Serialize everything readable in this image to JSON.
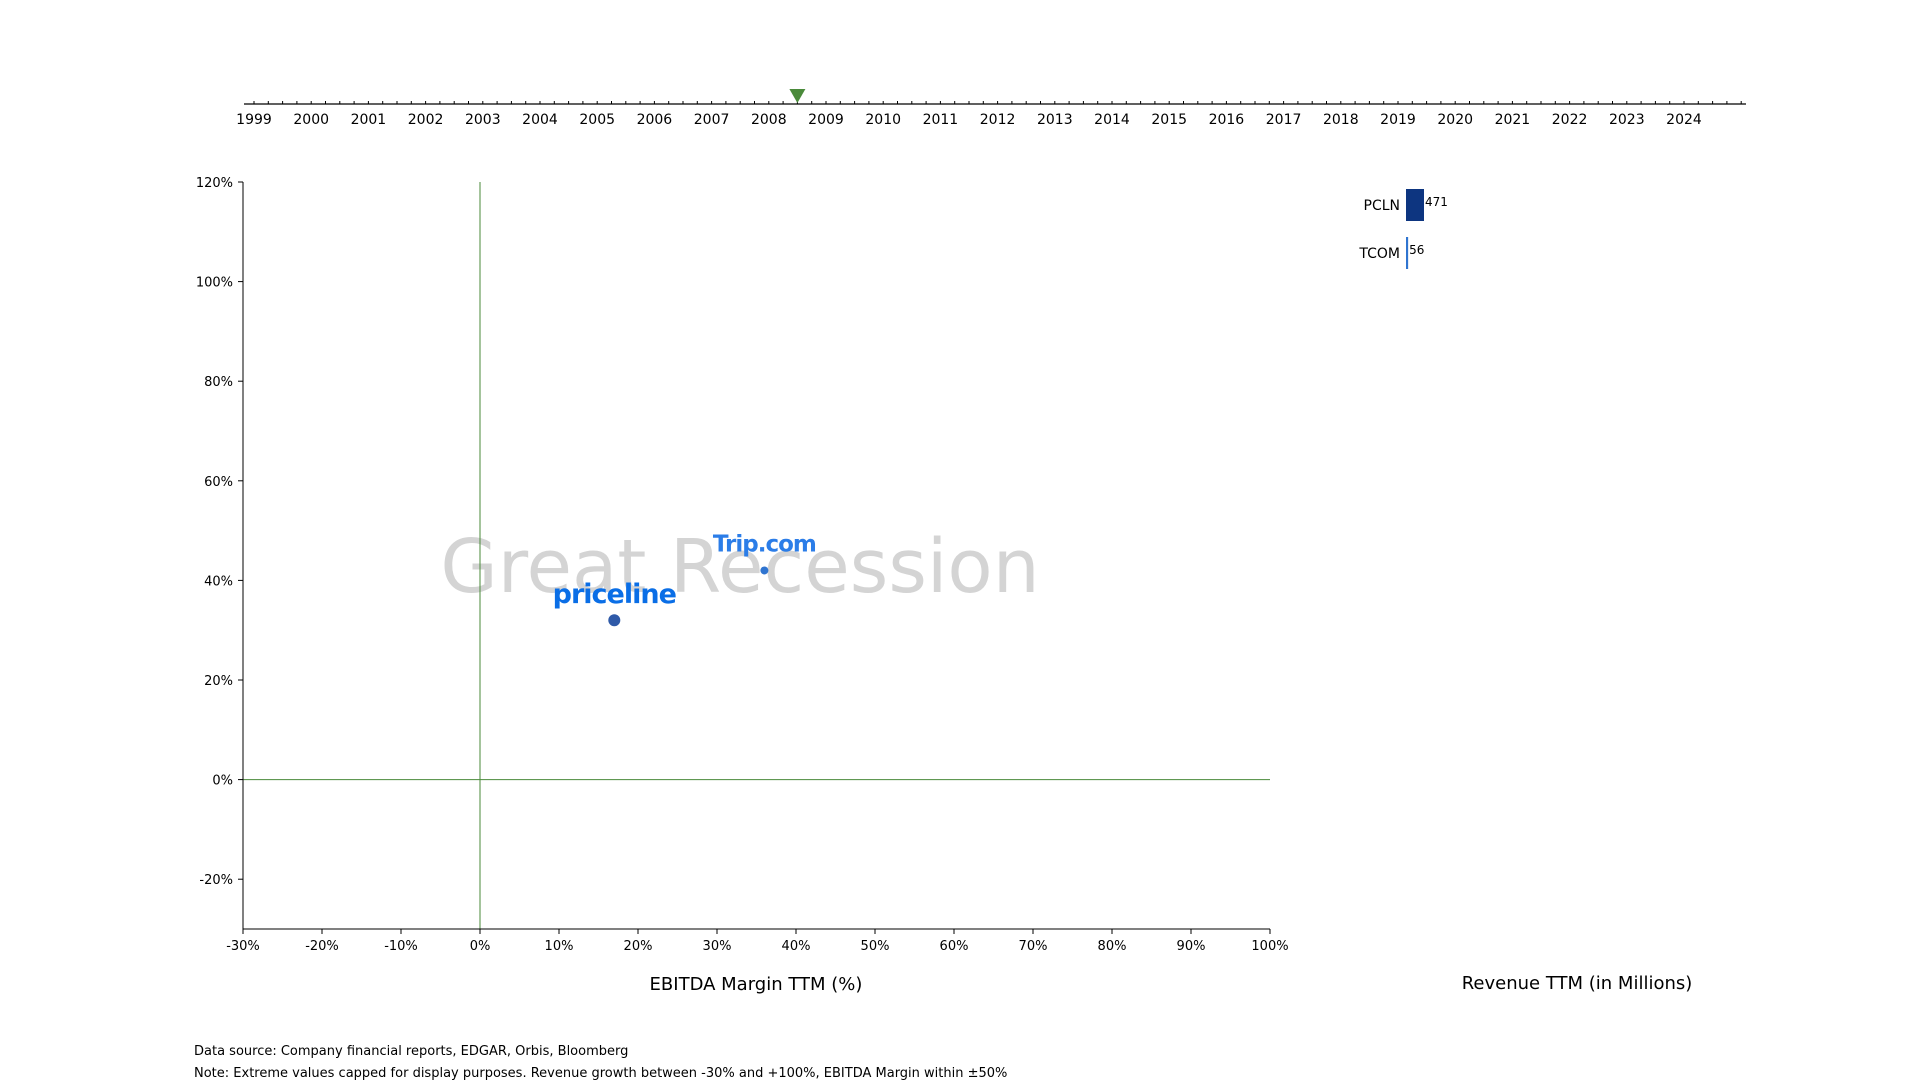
{
  "timeline": {
    "years": [
      "1999",
      "2000",
      "2001",
      "2002",
      "2003",
      "2004",
      "2005",
      "2006",
      "2007",
      "2008",
      "2009",
      "2010",
      "2011",
      "2012",
      "2013",
      "2014",
      "2015",
      "2016",
      "2017",
      "2018",
      "2019",
      "2020",
      "2021",
      "2022",
      "2023",
      "2024"
    ],
    "marker_year": 2008.5,
    "marker_color": "#4a8a3a"
  },
  "chart_data": [
    {
      "type": "scatter",
      "xlabel": "EBITDA Margin TTM (%)",
      "xlim": [
        -30,
        100
      ],
      "ylim": [
        -30,
        120
      ],
      "x_ticks": [
        "-30%",
        "-20%",
        "-10%",
        "0%",
        "10%",
        "20%",
        "30%",
        "40%",
        "50%",
        "60%",
        "70%",
        "80%",
        "90%",
        "100%"
      ],
      "y_ticks": [
        "120%",
        "100%",
        "80%",
        "60%",
        "40%",
        "20%",
        "0%",
        "-20%"
      ],
      "reference_lines": {
        "x": 0,
        "y": 0,
        "color": "#4a8a3a"
      },
      "watermark": "Great Recession",
      "points": [
        {
          "label": "priceline",
          "x": 17,
          "y": 32,
          "size": "large",
          "color": "#2f5aa8",
          "logo_color": "#0a6ee6"
        },
        {
          "label": "Trip.com",
          "x": 36,
          "y": 42,
          "size": "small",
          "color": "#2f74d0",
          "logo_color": "#2b7de8"
        }
      ]
    },
    {
      "type": "bar",
      "orientation": "horizontal",
      "xlabel": "Revenue TTM (in Millions)",
      "categories": [
        "PCLN",
        "TCOM"
      ],
      "values": [
        471,
        56
      ],
      "value_labels": [
        "471",
        "56"
      ],
      "colors": [
        "#0d3580",
        "#2f74d0"
      ]
    }
  ],
  "footnotes": {
    "source": "Data source: Company financial reports, EDGAR, Orbis, Bloomberg",
    "note": "Note: Extreme values capped for display purposes. Revenue growth between -30% and +100%, EBITDA Margin within ±50%"
  }
}
